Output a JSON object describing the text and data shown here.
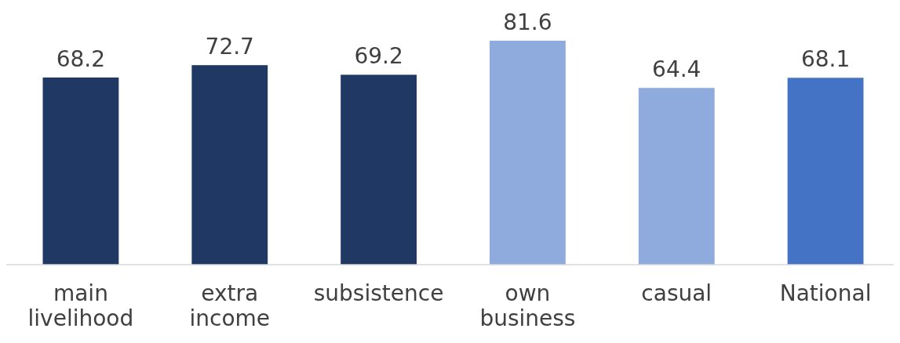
{
  "chart_data": {
    "type": "bar",
    "categories": [
      "main livelihood",
      "extra income",
      "subsistence",
      "own business",
      "casual",
      "National"
    ],
    "values": [
      68.2,
      72.7,
      69.2,
      81.6,
      64.4,
      68.1
    ],
    "colors": [
      "#1f3864",
      "#1f3864",
      "#1f3864",
      "#8faadc",
      "#8faadc",
      "#4472c4"
    ],
    "data_labels": true,
    "tick_labels": "x"
  }
}
